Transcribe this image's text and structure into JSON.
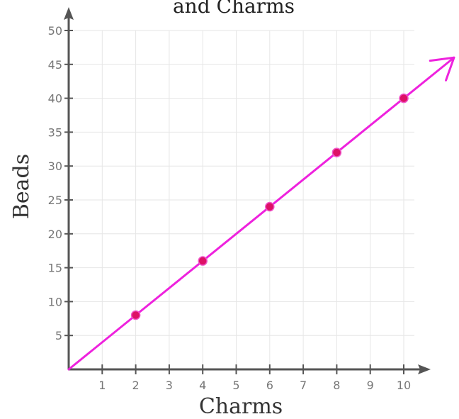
{
  "chart_data": {
    "type": "line",
    "title": "and Charms",
    "xlabel": "Charms",
    "ylabel": "Beads",
    "xlim": [
      0,
      10
    ],
    "ylim": [
      0,
      50
    ],
    "x_ticks": [
      1,
      2,
      3,
      4,
      5,
      6,
      7,
      8,
      9,
      10
    ],
    "y_ticks": [
      5,
      10,
      15,
      20,
      25,
      30,
      35,
      40,
      45,
      50
    ],
    "grid": true,
    "line_color": "#ee22dd",
    "point_color": "#dd1166",
    "line_extends_with_arrow": true,
    "series": [
      {
        "x": [
          2,
          4,
          6,
          8,
          10
        ],
        "y": [
          8,
          16,
          24,
          32,
          40
        ]
      }
    ]
  }
}
